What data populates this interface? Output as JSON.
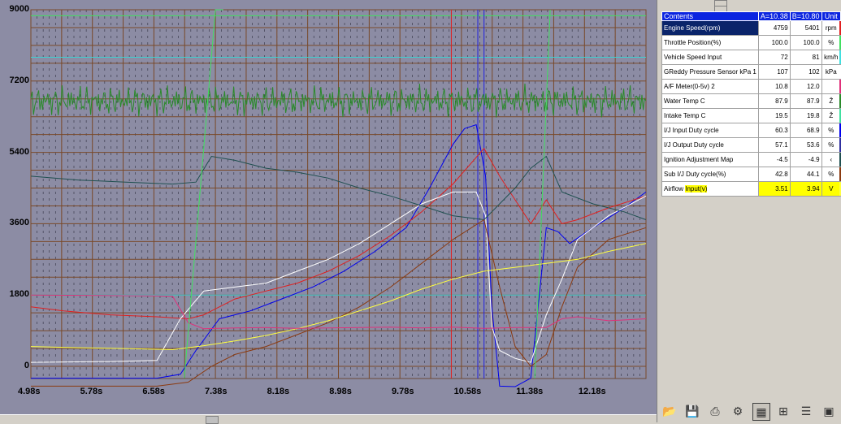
{
  "chart_data": {
    "type": "line",
    "y_ticks": [
      "9000",
      "7200",
      "5400",
      "3600",
      "1800",
      "0"
    ],
    "x_ticks": [
      "4.98s",
      "5.78s",
      "6.58s",
      "7.38s",
      "8.18s",
      "8.98s",
      "9.78s",
      "10.58s",
      "11.38s",
      "12.18s"
    ],
    "ylim": [
      0,
      9000
    ],
    "xlim": [
      4.98,
      12.88
    ],
    "cursor_a": 10.38,
    "cursor_b": 10.8,
    "grid": true,
    "series": [
      {
        "color": "#0000ee",
        "x": [
          4.98,
          6.6,
          6.9,
          7.1,
          7.4,
          7.8,
          8.2,
          8.6,
          9.0,
          9.4,
          9.8,
          10.1,
          10.4,
          10.55,
          10.7,
          10.82,
          10.9,
          11.0,
          11.2,
          11.4,
          11.6,
          11.75,
          11.9,
          12.2,
          12.6,
          12.88
        ],
        "values": [
          -300,
          -300,
          -200,
          400,
          1200,
          1400,
          1700,
          2000,
          2400,
          2900,
          3500,
          4500,
          5600,
          6000,
          6100,
          4800,
          1500,
          -500,
          -800,
          -300,
          3500,
          3400,
          3100,
          3500,
          4000,
          4400
        ]
      },
      {
        "color": "#e02020",
        "x": [
          4.98,
          5.4,
          6.0,
          6.6,
          7.0,
          7.2,
          7.6,
          8.0,
          8.4,
          8.8,
          9.2,
          9.6,
          10.0,
          10.4,
          10.8,
          11.0,
          11.2,
          11.4,
          11.6,
          11.8,
          12.0,
          12.4,
          12.88
        ],
        "values": [
          1500,
          1400,
          1300,
          1250,
          1200,
          1300,
          1700,
          1900,
          2100,
          2400,
          2800,
          3300,
          3900,
          4600,
          5500,
          4800,
          4200,
          3600,
          4200,
          3600,
          3700,
          4000,
          4300
        ]
      },
      {
        "color": "#ffffff",
        "x": [
          4.98,
          6.0,
          6.6,
          6.9,
          7.2,
          7.6,
          8.0,
          8.4,
          8.8,
          9.2,
          9.6,
          10.0,
          10.4,
          10.7,
          10.82,
          10.9,
          11.0,
          11.2,
          11.4,
          11.6,
          11.8,
          12.0,
          12.4,
          12.88
        ],
        "values": [
          100,
          120,
          150,
          1200,
          1900,
          2000,
          2100,
          2400,
          2700,
          3100,
          3600,
          4100,
          4400,
          4400,
          3800,
          1000,
          400,
          200,
          100,
          1300,
          2200,
          3200,
          3800,
          4300
        ]
      },
      {
        "color": "#205050",
        "x": [
          4.98,
          5.6,
          6.2,
          6.8,
          7.1,
          7.3,
          7.6,
          8.0,
          8.4,
          8.8,
          9.2,
          9.6,
          10.0,
          10.4,
          10.8,
          11.2,
          11.4,
          11.6,
          11.8,
          12.2,
          12.6,
          12.88
        ],
        "values": [
          4800,
          4700,
          4650,
          4600,
          4650,
          5300,
          5200,
          5000,
          4900,
          4750,
          4500,
          4300,
          4050,
          3800,
          3700,
          4500,
          5000,
          5300,
          4400,
          4100,
          3900,
          3700
        ]
      },
      {
        "color": "#8b3a10",
        "x": [
          4.98,
          6.6,
          7.0,
          7.3,
          7.6,
          8.0,
          8.4,
          8.8,
          9.2,
          9.6,
          10.0,
          10.4,
          10.8,
          11.0,
          11.2,
          11.4,
          11.6,
          11.8,
          12.0,
          12.4,
          12.88
        ],
        "values": [
          -500,
          -500,
          -400,
          0,
          300,
          500,
          800,
          1100,
          1500,
          2000,
          2600,
          3200,
          3700,
          2000,
          500,
          0,
          300,
          1500,
          2500,
          3200,
          3500
        ]
      },
      {
        "color": "#ffff40",
        "x": [
          4.98,
          5.6,
          6.2,
          6.8,
          7.2,
          7.6,
          8.0,
          8.4,
          8.8,
          9.2,
          9.6,
          10.0,
          10.4,
          10.8,
          11.2,
          11.6,
          12.0,
          12.4,
          12.88
        ],
        "values": [
          500,
          470,
          450,
          420,
          520,
          640,
          780,
          950,
          1150,
          1400,
          1650,
          1950,
          2200,
          2400,
          2500,
          2600,
          2700,
          2900,
          3100
        ]
      },
      {
        "color": "#e0307a",
        "x": [
          4.98,
          6.6,
          6.8,
          7.0,
          7.2,
          7.6,
          8.0,
          8.4,
          8.8,
          9.2,
          9.6,
          10.0,
          10.4,
          10.8,
          11.2,
          11.6,
          11.8,
          12.0,
          12.4,
          12.88
        ],
        "values": [
          1800,
          1780,
          1770,
          1100,
          950,
          970,
          980,
          960,
          970,
          980,
          990,
          970,
          990,
          960,
          980,
          980,
          1200,
          1250,
          1150,
          1200
        ]
      },
      {
        "color": "#2a8a2a",
        "x": [
          4.98,
          5.5,
          6.0,
          6.5,
          7.0,
          7.5,
          8.0,
          8.5,
          9.0,
          9.5,
          10.0,
          10.5,
          11.0,
          11.5,
          12.0,
          12.5,
          12.88
        ],
        "values": [
          6700,
          6700,
          6700,
          6700,
          6700,
          6700,
          6700,
          6700,
          6700,
          6700,
          6700,
          6700,
          6700,
          6700,
          6700,
          6700,
          6700
        ]
      },
      {
        "color": "#40e060",
        "x": [
          6.95,
          7.35,
          7.45
        ],
        "values": [
          -300,
          9000,
          9000
        ]
      },
      {
        "color": "#40e060",
        "x": [
          11.45,
          11.65
        ],
        "values": [
          -300,
          9000
        ]
      }
    ]
  },
  "panel": {
    "header": {
      "name": "Contents",
      "a": "A=10.38",
      "b": "B=10.80",
      "unit": "Unit"
    },
    "rows": [
      {
        "name": "Engine Speed(rpm)",
        "a": "4759",
        "b": "5401",
        "unit": "rpm",
        "color": "#e02020",
        "selected": true
      },
      {
        "name": "Throttle Position(%)",
        "a": "100.0",
        "b": "100.0",
        "unit": "%",
        "color": "#40e060"
      },
      {
        "name": "Vehicle Speed Input",
        "a": "72",
        "b": "81",
        "unit": "km/h",
        "color": "#40e0e0"
      },
      {
        "name": "GReddy Pressure Sensor kPa 1",
        "a": "107",
        "b": "102",
        "unit": "kPa",
        "color": "#ffffff"
      },
      {
        "name": "A/F Meter(0-5v) 2",
        "a": "10.8",
        "b": "12.0",
        "unit": "",
        "color": "#e0307a"
      },
      {
        "name": "Water Temp C",
        "a": "87.9",
        "b": "87.9",
        "unit": "Ž",
        "color": "#2a8a2a"
      },
      {
        "name": "Intake Temp C",
        "a": "19.5",
        "b": "19.8",
        "unit": "Ž",
        "color": "#40e0a0"
      },
      {
        "name": "I/J Input Duty cycle",
        "a": "60.3",
        "b": "68.9",
        "unit": "%",
        "color": "#0000ee"
      },
      {
        "name": "I/J Output Duty cycle",
        "a": "57.1",
        "b": "53.6",
        "unit": "%",
        "color": "#3030a0"
      },
      {
        "name": "Ignition Adjustment Map",
        "a": "-4.5",
        "b": "-4.9",
        "unit": "‹",
        "color": "#205050"
      },
      {
        "name": "Sub I/J Duty cycle(%)",
        "a": "42.8",
        "b": "44.1",
        "unit": "%",
        "color": "#8b3a10"
      },
      {
        "name_prefix": "Airflow ",
        "name_hl": "Input(v)",
        "a": "3.51",
        "b": "3.94",
        "unit": "V",
        "color": "#ffff40",
        "highlight": true
      }
    ]
  },
  "toolbar": [
    "open-folder-icon",
    "save-icon",
    "print-icon",
    "settings-icon",
    "table-view-icon",
    "graph-view-icon",
    "list-icon",
    "chart-icon"
  ]
}
